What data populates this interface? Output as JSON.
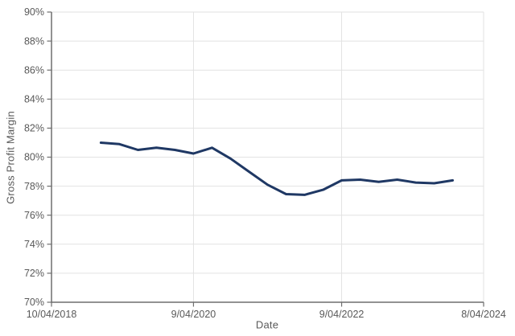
{
  "chart_data": {
    "type": "line",
    "title": "",
    "xlabel": "Date",
    "ylabel": "Gross Profit Margin",
    "ylim": [
      70,
      90
    ],
    "y_tick_step": 2,
    "y_tick_labels": [
      "70%",
      "72%",
      "74%",
      "76%",
      "78%",
      "80%",
      "82%",
      "84%",
      "86%",
      "88%",
      "90%"
    ],
    "x_range_months": [
      0,
      70
    ],
    "x_ticks": [
      {
        "label": "10/04/2018",
        "month": 0
      },
      {
        "label": "9/04/2020",
        "month": 23
      },
      {
        "label": "9/04/2022",
        "month": 47
      },
      {
        "label": "8/04/2024",
        "month": 70
      }
    ],
    "grid": true,
    "legend": false,
    "line_color": "#1f3864",
    "axis_color": "#6e6e6e",
    "gridline_color": "#e2e2e2",
    "label_color": "#595959",
    "series": [
      {
        "name": "Gross Profit Margin",
        "x_dates": [
          "2019-06",
          "2019-09",
          "2019-12",
          "2020-03",
          "2020-06",
          "2020-09",
          "2020-12",
          "2021-03",
          "2021-06",
          "2021-09",
          "2021-12",
          "2022-03",
          "2022-06",
          "2022-09",
          "2022-12",
          "2023-03",
          "2023-06",
          "2023-09",
          "2023-12",
          "2024-03"
        ],
        "x_months": [
          8,
          11,
          14,
          17,
          20,
          23,
          26,
          29,
          32,
          35,
          38,
          41,
          44,
          47,
          50,
          53,
          56,
          59,
          62,
          65
        ],
        "values": [
          81.0,
          80.9,
          80.5,
          80.65,
          80.5,
          80.25,
          80.65,
          79.9,
          79.0,
          78.1,
          77.45,
          77.4,
          77.75,
          78.4,
          78.45,
          78.3,
          78.45,
          78.25,
          78.2,
          78.4
        ]
      }
    ]
  }
}
